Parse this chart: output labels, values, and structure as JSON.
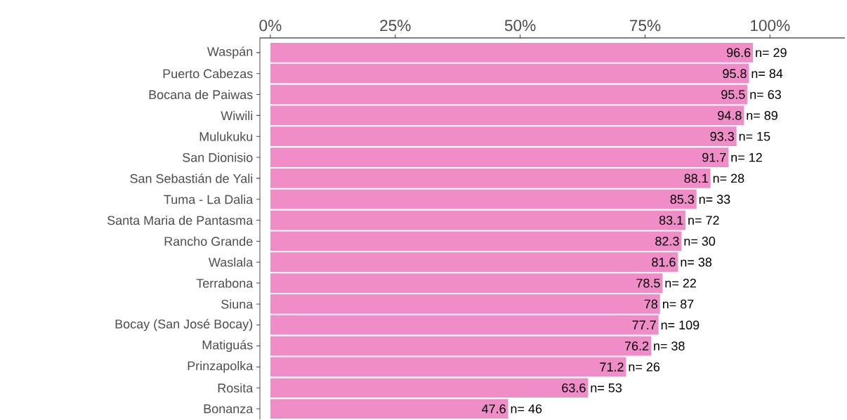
{
  "chart_data": {
    "type": "bar",
    "orientation": "horizontal",
    "categories": [
      "Waspán",
      "Puerto Cabezas",
      "Bocana de Paiwas",
      "Wiwili",
      "Mulukuku",
      "San Dionisio",
      "San Sebastián de Yali",
      "Tuma - La Dalia",
      "Santa Maria de Pantasma",
      "Rancho Grande",
      "Waslala",
      "Terrabona",
      "Siuna",
      "Bocay (San José Bocay)",
      "Matiguás",
      "Prinzapolka",
      "Rosita",
      "Bonanza"
    ],
    "values": [
      96.6,
      95.8,
      95.5,
      94.8,
      93.3,
      91.7,
      88.1,
      85.3,
      83.1,
      82.3,
      81.6,
      78.5,
      78,
      77.7,
      76.2,
      71.2,
      63.6,
      47.6
    ],
    "color": "#f08dc8",
    "data_labels": true,
    "xlim": [
      -2.1,
      115
    ],
    "xticks": [
      {
        "value": 0,
        "label": "0%"
      },
      {
        "value": 25,
        "label": "25%"
      },
      {
        "value": 50,
        "label": "50%"
      },
      {
        "value": 75,
        "label": "75%"
      },
      {
        "value": 100,
        "label": "100%"
      }
    ],
    "annotations": [
      {
        "text": "n= 29",
        "x": 96.6,
        "y": "Waspán"
      },
      {
        "text": "n= 84",
        "x": 95.8,
        "y": "Puerto Cabezas"
      },
      {
        "text": "n= 63",
        "x": 95.5,
        "y": "Bocana de Paiwas"
      },
      {
        "text": "n= 89",
        "x": 94.8,
        "y": "Wiwili"
      },
      {
        "text": "n= 15",
        "x": 93.3,
        "y": "Mulukuku"
      },
      {
        "text": "n= 12",
        "x": 91.7,
        "y": "San Dionisio"
      },
      {
        "text": "n= 28",
        "x": 88.1,
        "y": "San Sebastián de Yali"
      },
      {
        "text": "n= 33",
        "x": 85.3,
        "y": "Tuma - La Dalia"
      },
      {
        "text": "n= 72",
        "x": 83.1,
        "y": "Santa Maria de Pantasma"
      },
      {
        "text": "n= 30",
        "x": 82.3,
        "y": "Rancho Grande"
      },
      {
        "text": "n= 38",
        "x": 81.6,
        "y": "Waslala"
      },
      {
        "text": "n= 22",
        "x": 78.5,
        "y": "Terrabona"
      },
      {
        "text": "n= 87",
        "x": 78,
        "y": "Siuna"
      },
      {
        "text": "n= 109",
        "x": 77.7,
        "y": "Bocay (San José Bocay)"
      },
      {
        "text": "n= 38",
        "x": 76.2,
        "y": "Matiguás"
      },
      {
        "text": "n= 26",
        "x": 71.2,
        "y": "Prinzapolka"
      },
      {
        "text": "n= 53",
        "x": 63.6,
        "y": "Rosita"
      },
      {
        "text": "n= 46",
        "x": 47.6,
        "y": "Bonanza"
      }
    ]
  }
}
